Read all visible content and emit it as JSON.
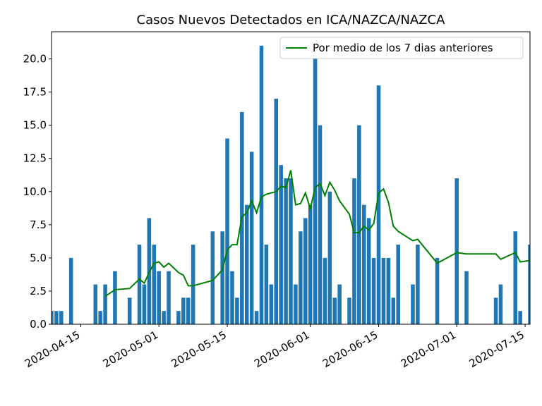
{
  "chart_data": {
    "type": "bar",
    "title": "Casos Nuevos Detectados en ICA/NAZCA/NAZCA",
    "x": [
      "2020-04-09",
      "2020-04-10",
      "2020-04-11",
      "2020-04-13",
      "2020-04-18",
      "2020-04-19",
      "2020-04-20",
      "2020-04-22",
      "2020-04-25",
      "2020-04-27",
      "2020-04-28",
      "2020-04-29",
      "2020-04-30",
      "2020-05-01",
      "2020-05-02",
      "2020-05-03",
      "2020-05-05",
      "2020-05-06",
      "2020-05-07",
      "2020-05-08",
      "2020-05-12",
      "2020-05-14",
      "2020-05-15",
      "2020-05-16",
      "2020-05-17",
      "2020-05-18",
      "2020-05-19",
      "2020-05-20",
      "2020-05-21",
      "2020-05-22",
      "2020-05-23",
      "2020-05-24",
      "2020-05-25",
      "2020-05-26",
      "2020-05-27",
      "2020-05-28",
      "2020-05-29",
      "2020-05-30",
      "2020-05-31",
      "2020-06-01",
      "2020-06-02",
      "2020-06-03",
      "2020-06-04",
      "2020-06-05",
      "2020-06-06",
      "2020-06-07",
      "2020-06-09",
      "2020-06-10",
      "2020-06-11",
      "2020-06-12",
      "2020-06-13",
      "2020-06-14",
      "2020-06-15",
      "2020-06-16",
      "2020-06-17",
      "2020-06-18",
      "2020-06-19",
      "2020-06-22",
      "2020-06-23",
      "2020-06-27",
      "2020-07-01",
      "2020-07-03",
      "2020-07-09",
      "2020-07-10",
      "2020-07-13",
      "2020-07-14",
      "2020-07-16"
    ],
    "values": [
      1,
      1,
      1,
      5,
      3,
      1,
      3,
      4,
      2,
      6,
      3,
      8,
      6,
      4,
      1,
      4,
      1,
      2,
      2,
      6,
      7,
      7,
      14,
      4,
      2,
      16,
      9,
      13,
      1,
      21,
      6,
      3,
      17,
      12,
      11,
      11,
      3,
      7,
      8,
      9,
      21,
      15,
      5,
      10,
      2,
      3,
      2,
      11,
      15,
      9,
      8,
      5,
      18,
      5,
      5,
      2,
      6,
      3,
      6,
      5,
      11,
      4,
      2,
      3,
      7,
      1,
      6
    ],
    "color": "#1f77b4",
    "series": [
      {
        "name": "Por medio de los 7 dias anteriores",
        "type": "line",
        "color": "#008000",
        "values": [
          null,
          null,
          null,
          null,
          null,
          null,
          2.1,
          2.6,
          2.7,
          3.4,
          3.1,
          3.9,
          4.6,
          4.7,
          4.3,
          4.6,
          3.9,
          3.7,
          2.9,
          2.9,
          3.3,
          4.1,
          5.6,
          6.0,
          6.0,
          8.1,
          8.4,
          9.3,
          8.4,
          9.6,
          9.8,
          9.9,
          10.0,
          10.4,
          10.3,
          11.6,
          9.0,
          9.1,
          9.9,
          8.7,
          10.3,
          10.6,
          9.7,
          10.7,
          10.1,
          9.3,
          8.3,
          6.9,
          6.9,
          7.4,
          7.1,
          7.6,
          9.9,
          10.2,
          9.2,
          7.4,
          7.0,
          6.3,
          6.4,
          4.6,
          5.4,
          5.3,
          5.3,
          4.9,
          5.4,
          4.7,
          4.8
        ]
      }
    ],
    "xlim": [
      "2020-04-09",
      "2020-07-16"
    ],
    "xticks": [
      "2020-04-15",
      "2020-05-01",
      "2020-05-15",
      "2020-06-01",
      "2020-06-15",
      "2020-07-01",
      "2020-07-15"
    ],
    "ylim": [
      0,
      22.05
    ],
    "yticks": [
      {
        "value": 0,
        "label": "0.0"
      },
      {
        "value": 2.5,
        "label": "2.5"
      },
      {
        "value": 5,
        "label": "5.0"
      },
      {
        "value": 7.5,
        "label": "7.5"
      },
      {
        "value": 10,
        "label": "10.0"
      },
      {
        "value": 12.5,
        "label": "12.5"
      },
      {
        "value": 15,
        "label": "15.0"
      },
      {
        "value": 17.5,
        "label": "17.5"
      },
      {
        "value": 20,
        "label": "20.0"
      }
    ],
    "legend": "upper right"
  }
}
